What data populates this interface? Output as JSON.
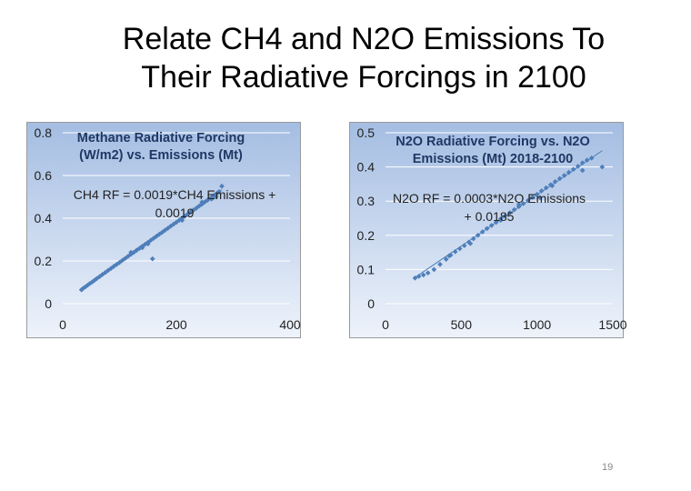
{
  "slide": {
    "title_line1": "Relate CH4 and N2O Emissions To",
    "title_line2": "Their Radiative Forcings in 2100",
    "page_number": "19"
  },
  "colors": {
    "background": "#ffffff",
    "plot_area_gradient_top": "#a4bde2",
    "plot_area_gradient_bottom": "#eef3fb",
    "gridline": "#ffffff",
    "marker": "#4f7fba",
    "trendline": "#4f7fba",
    "title_text": "#1f3864"
  },
  "chart_data": [
    {
      "type": "scatter",
      "title": "Methane Radiative Forcing (W/m2) vs. Emissions (Mt)",
      "title_lines": [
        "Methane Radiative Forcing",
        "(W/m2) vs. Emissions (Mt)"
      ],
      "annotation_lines": [
        "CH4 RF = 0.0019*CH4 Emissions +",
        "0.0019"
      ],
      "equation": {
        "slope": 0.0019,
        "intercept": 0.0019
      },
      "xlabel": "",
      "ylabel": "",
      "xlim": [
        0,
        400
      ],
      "ylim": [
        0,
        0.8
      ],
      "x_ticks": [
        "0",
        "200",
        "400"
      ],
      "y_ticks": [
        "0",
        "0.2",
        "0.4",
        "0.6",
        "0.8"
      ],
      "grid": "horizontal",
      "legend": "none",
      "trendline": true,
      "series": [
        {
          "points": [
            [
              33,
              0.065
            ],
            [
              36,
              0.072
            ],
            [
              40,
              0.079
            ],
            [
              44,
              0.087
            ],
            [
              48,
              0.095
            ],
            [
              52,
              0.102
            ],
            [
              56,
              0.11
            ],
            [
              60,
              0.118
            ],
            [
              65,
              0.127
            ],
            [
              70,
              0.137
            ],
            [
              75,
              0.146
            ],
            [
              80,
              0.156
            ],
            [
              85,
              0.165
            ],
            [
              90,
              0.175
            ],
            [
              95,
              0.184
            ],
            [
              100,
              0.193
            ],
            [
              105,
              0.203
            ],
            [
              110,
              0.212
            ],
            [
              115,
              0.222
            ],
            [
              120,
              0.231
            ],
            [
              125,
              0.24
            ],
            [
              130,
              0.25
            ],
            [
              135,
              0.259
            ],
            [
              140,
              0.269
            ],
            [
              145,
              0.278
            ],
            [
              150,
              0.287
            ],
            [
              155,
              0.297
            ],
            [
              160,
              0.306
            ],
            [
              165,
              0.316
            ],
            [
              170,
              0.325
            ],
            [
              175,
              0.334
            ],
            [
              180,
              0.344
            ],
            [
              185,
              0.353
            ],
            [
              190,
              0.363
            ],
            [
              195,
              0.372
            ],
            [
              200,
              0.381
            ],
            [
              205,
              0.391
            ],
            [
              210,
              0.4
            ],
            [
              215,
              0.41
            ],
            [
              220,
              0.419
            ],
            [
              225,
              0.429
            ],
            [
              230,
              0.438
            ],
            [
              235,
              0.447
            ],
            [
              240,
              0.457
            ],
            [
              245,
              0.466
            ],
            [
              250,
              0.476
            ],
            [
              255,
              0.485
            ],
            [
              260,
              0.494
            ],
            [
              265,
              0.504
            ],
            [
              268,
              0.51
            ],
            [
              272,
              0.518
            ],
            [
              275,
              0.524
            ],
            [
              280,
              0.55
            ],
            [
              270,
              0.5
            ],
            [
              262,
              0.49
            ],
            [
              150,
              0.28
            ],
            [
              120,
              0.24
            ],
            [
              140,
              0.262
            ],
            [
              210,
              0.39
            ],
            [
              245,
              0.475
            ],
            [
              158,
              0.21
            ]
          ]
        }
      ]
    },
    {
      "type": "scatter",
      "title": "N2O Radiative Forcing vs. N2O Emissions (Mt) 2018-2100",
      "title_lines": [
        "N2O Radiative Forcing vs. N2O",
        "Emissions (Mt) 2018-2100"
      ],
      "annotation_lines": [
        "N2O RF = 0.0003*N2O Emissions",
        "+ 0.0185"
      ],
      "equation": {
        "slope": 0.0003,
        "intercept": 0.0185
      },
      "xlabel": "",
      "ylabel": "",
      "xlim": [
        0,
        1500
      ],
      "ylim": [
        0,
        0.5
      ],
      "x_ticks": [
        "0",
        "500",
        "1000",
        "1500"
      ],
      "y_ticks": [
        "0",
        "0.1",
        "0.2",
        "0.3",
        "0.4",
        "0.5"
      ],
      "grid": "horizontal",
      "legend": "none",
      "trendline": true,
      "series": [
        {
          "points": [
            [
              195,
              0.075
            ],
            [
              220,
              0.08
            ],
            [
              250,
              0.084
            ],
            [
              280,
              0.09
            ],
            [
              320,
              0.1
            ],
            [
              360,
              0.115
            ],
            [
              400,
              0.13
            ],
            [
              430,
              0.142
            ],
            [
              460,
              0.152
            ],
            [
              490,
              0.161
            ],
            [
              520,
              0.17
            ],
            [
              550,
              0.18
            ],
            [
              580,
              0.19
            ],
            [
              610,
              0.2
            ],
            [
              640,
              0.21
            ],
            [
              670,
              0.22
            ],
            [
              700,
              0.229
            ],
            [
              730,
              0.238
            ],
            [
              760,
              0.248
            ],
            [
              790,
              0.257
            ],
            [
              820,
              0.266
            ],
            [
              850,
              0.275
            ],
            [
              880,
              0.284
            ],
            [
              910,
              0.293
            ],
            [
              940,
              0.302
            ],
            [
              970,
              0.311
            ],
            [
              1000,
              0.32
            ],
            [
              1030,
              0.33
            ],
            [
              1060,
              0.339
            ],
            [
              1090,
              0.348
            ],
            [
              1120,
              0.357
            ],
            [
              1150,
              0.366
            ],
            [
              1180,
              0.375
            ],
            [
              1210,
              0.384
            ],
            [
              1240,
              0.393
            ],
            [
              1270,
              0.402
            ],
            [
              1300,
              0.412
            ],
            [
              1330,
              0.42
            ],
            [
              1360,
              0.426
            ],
            [
              1430,
              0.4
            ],
            [
              1020,
              0.31
            ],
            [
              880,
              0.29
            ],
            [
              1300,
              0.39
            ],
            [
              560,
              0.176
            ],
            [
              1100,
              0.345
            ],
            [
              420,
              0.14
            ],
            [
              760,
              0.244
            ]
          ]
        }
      ]
    }
  ]
}
